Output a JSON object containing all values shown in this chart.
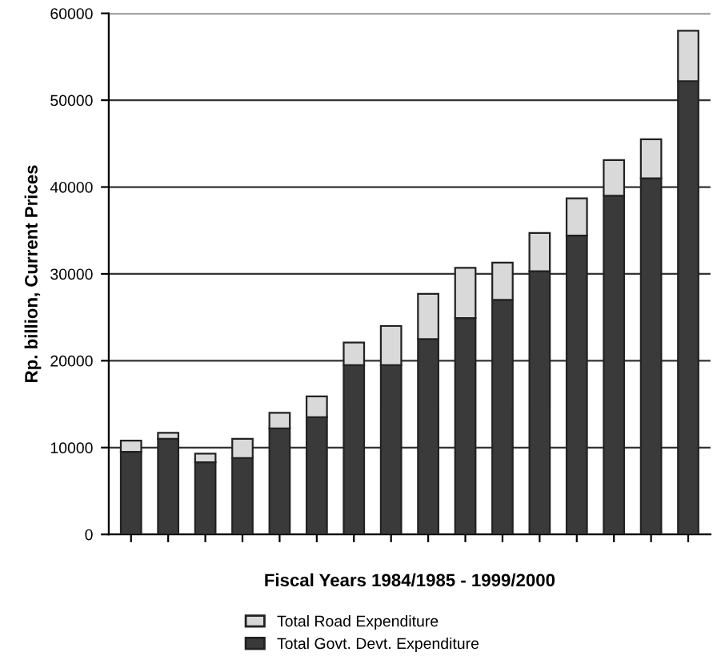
{
  "chart_data": {
    "type": "bar",
    "stacked": true,
    "xlabel": "Fiscal Years 1984/1985 - 1999/2000",
    "ylabel": "Rp. billion, Current Prices",
    "categories": [
      null,
      null,
      null,
      null,
      null,
      null,
      null,
      null,
      null,
      null,
      null,
      null,
      null,
      null,
      null,
      null
    ],
    "series": [
      {
        "name": "Total Govt. Devt. Expenditure",
        "color": "#3a3a3a",
        "values": [
          9500,
          11000,
          8300,
          8800,
          12200,
          13500,
          19500,
          19500,
          22500,
          24900,
          27000,
          30300,
          34400,
          39000,
          41000,
          52200
        ]
      },
      {
        "name": "Total Road Expenditure",
        "color": "#d9d9d9",
        "values": [
          1300,
          700,
          1000,
          2200,
          1800,
          2400,
          2600,
          4500,
          5200,
          5800,
          4300,
          4400,
          4300,
          4100,
          4500,
          5800
        ]
      }
    ],
    "ylim": [
      0,
      60000
    ],
    "yticks": [
      0,
      10000,
      20000,
      30000,
      40000,
      50000,
      60000
    ],
    "grid": "y",
    "legend": "bottom",
    "tick_labels": "y"
  }
}
